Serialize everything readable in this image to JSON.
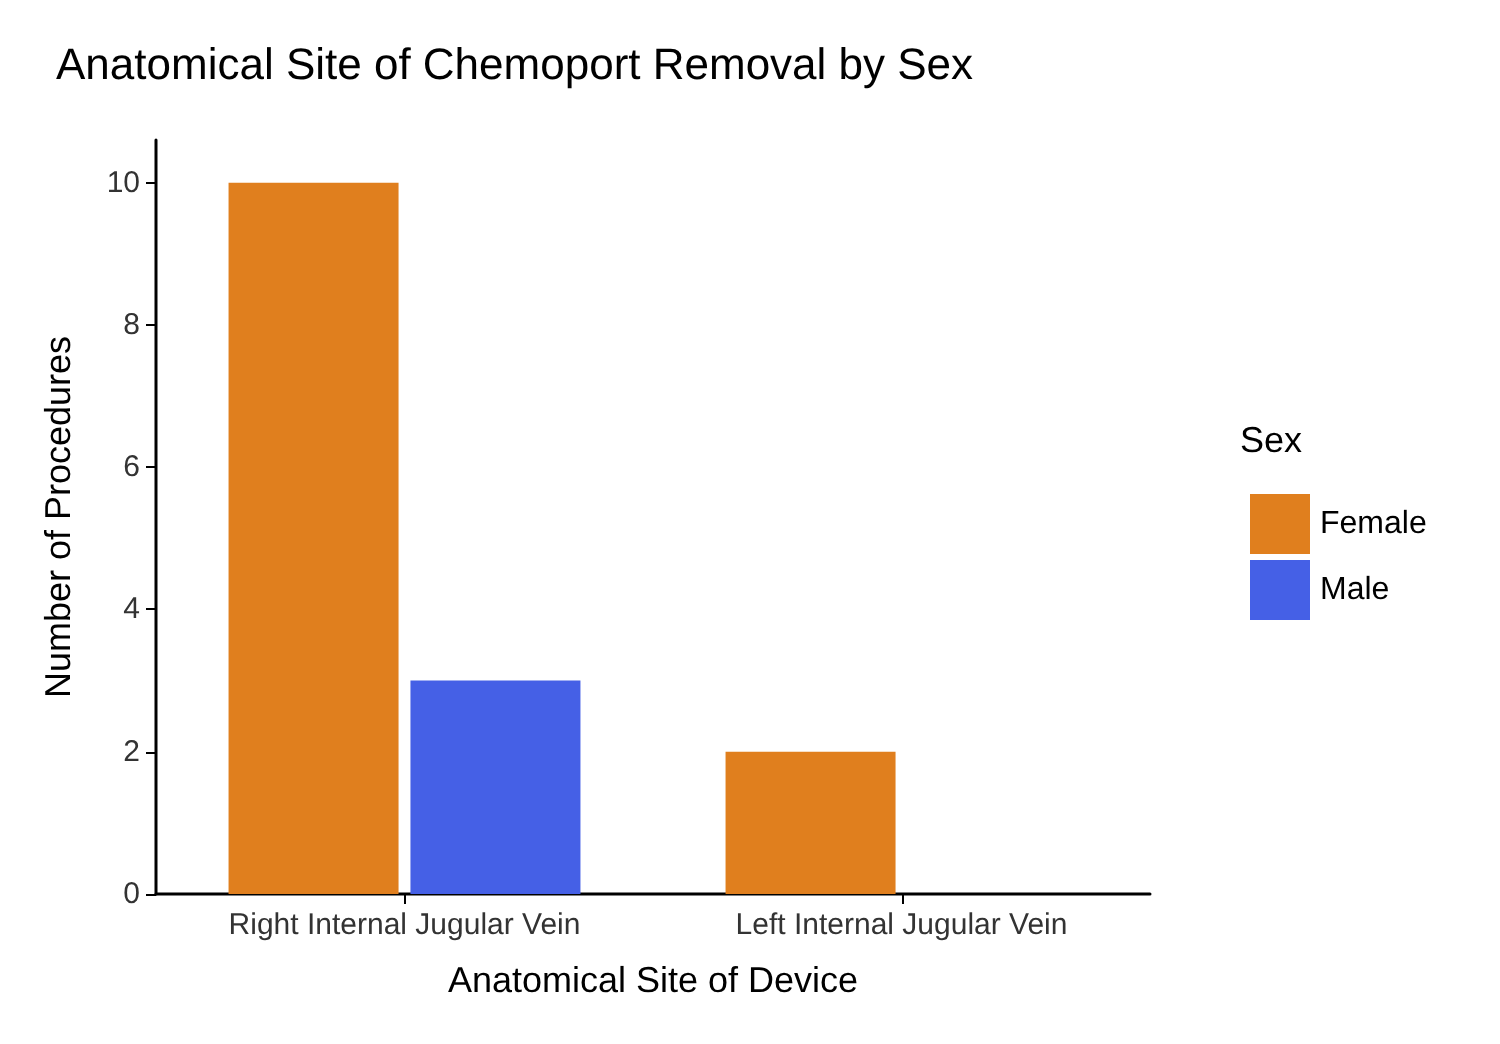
{
  "chart_data": {
    "type": "bar",
    "title": "Anatomical Site of Chemoport Removal by Sex",
    "xlabel": "Anatomical Site of Device",
    "ylabel": "Number of Procedures",
    "legend_title": "Sex",
    "categories": [
      "Right Internal Jugular Vein",
      "Left Internal Jugular Vein"
    ],
    "series": [
      {
        "name": "Female",
        "color": "#e07f1e",
        "values": [
          10,
          2
        ]
      },
      {
        "name": "Male",
        "color": "#4560e6",
        "values": [
          3,
          null
        ]
      }
    ],
    "ylim": [
      0,
      10.6
    ],
    "yticks": [
      0,
      2,
      4,
      6,
      8,
      10
    ],
    "grid": false,
    "legend": "right"
  }
}
